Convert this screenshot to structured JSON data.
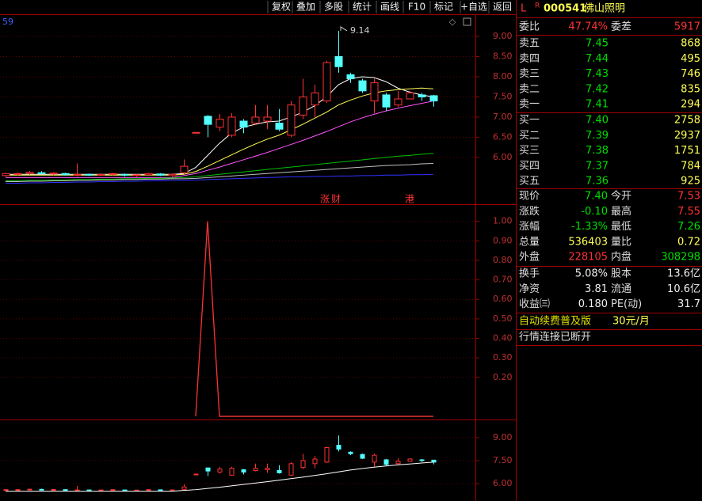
{
  "toolbar": [
    "复权",
    "叠加",
    "多股",
    "统计",
    "画线",
    "F10",
    "标记",
    "+自选",
    "返回"
  ],
  "chart": {
    "indicator_value": "59",
    "high_label": "9.14",
    "event_labels": [
      "涨",
      "财",
      "港"
    ],
    "price_lim": [
      4.84,
      9.55
    ],
    "price_ticks": [
      {
        "value": 9,
        "label": "9.00"
      },
      {
        "value": 8.5,
        "label": "8.50"
      },
      {
        "value": 8,
        "label": "8.00"
      },
      {
        "value": 7.5,
        "label": "7.50"
      },
      {
        "value": 7,
        "label": "7.00"
      },
      {
        "value": 6.5,
        "label": "6.50"
      },
      {
        "value": 6,
        "label": "6.00"
      }
    ],
    "candles": [
      [
        5.55,
        5.62,
        5.52,
        5.6
      ],
      [
        5.58,
        5.62,
        5.55,
        5.6
      ],
      [
        5.6,
        5.66,
        5.57,
        5.63
      ],
      [
        5.62,
        5.66,
        5.58,
        5.6
      ],
      [
        5.6,
        5.63,
        5.56,
        5.61
      ],
      [
        5.6,
        5.62,
        5.55,
        5.57
      ],
      [
        5.57,
        5.85,
        5.53,
        5.58
      ],
      [
        5.58,
        5.6,
        5.54,
        5.56
      ],
      [
        5.56,
        5.6,
        5.54,
        5.58
      ],
      [
        5.58,
        5.62,
        5.55,
        5.6
      ],
      [
        5.58,
        5.6,
        5.53,
        5.56
      ],
      [
        5.56,
        5.59,
        5.52,
        5.57
      ],
      [
        5.57,
        5.62,
        5.54,
        5.6
      ],
      [
        5.59,
        5.61,
        5.54,
        5.56
      ],
      [
        5.55,
        5.6,
        5.52,
        5.58
      ],
      [
        5.62,
        5.95,
        5.58,
        5.78
      ],
      [
        6.62,
        6.62,
        6.62,
        6.62
      ],
      [
        7.02,
        7.05,
        6.5,
        6.82
      ],
      [
        6.75,
        7.08,
        6.65,
        6.95
      ],
      [
        6.55,
        7.1,
        6.5,
        7.0
      ],
      [
        6.9,
        6.95,
        6.6,
        6.75
      ],
      [
        6.85,
        7.3,
        6.8,
        7.0
      ],
      [
        6.9,
        7.3,
        6.7,
        7.0
      ],
      [
        6.85,
        7.2,
        6.65,
        6.7
      ],
      [
        6.55,
        7.4,
        6.5,
        7.3
      ],
      [
        7.05,
        7.95,
        6.95,
        7.5
      ],
      [
        7.3,
        7.8,
        7.0,
        7.6
      ],
      [
        7.4,
        8.4,
        7.35,
        8.35
      ],
      [
        8.5,
        9.14,
        8.1,
        8.25
      ],
      [
        8.05,
        8.1,
        7.85,
        7.95
      ],
      [
        7.9,
        7.95,
        7.6,
        7.65
      ],
      [
        7.4,
        7.95,
        7.1,
        7.85
      ],
      [
        7.55,
        7.6,
        7.15,
        7.25
      ],
      [
        7.3,
        7.65,
        7.25,
        7.45
      ],
      [
        7.45,
        7.65,
        7.45,
        7.6
      ],
      [
        7.55,
        7.6,
        7.4,
        7.5
      ],
      [
        7.53,
        7.55,
        7.26,
        7.4
      ]
    ],
    "ma": [
      {
        "color": "#ffffff",
        "values": [
          5.58,
          5.58,
          5.58,
          5.58,
          5.58,
          5.58,
          5.58,
          5.58,
          5.58,
          5.58,
          5.58,
          5.58,
          5.58,
          5.58,
          5.58,
          5.6,
          5.75,
          6.05,
          6.35,
          6.6,
          6.75,
          6.82,
          6.88,
          6.9,
          7.0,
          7.12,
          7.28,
          7.5,
          7.8,
          7.95,
          8.0,
          7.98,
          7.88,
          7.72,
          7.62,
          7.55,
          7.5
        ]
      },
      {
        "color": "#ffff54",
        "values": [
          5.56,
          5.56,
          5.56,
          5.56,
          5.56,
          5.56,
          5.56,
          5.56,
          5.56,
          5.56,
          5.56,
          5.56,
          5.56,
          5.56,
          5.56,
          5.58,
          5.65,
          5.78,
          5.92,
          6.06,
          6.2,
          6.33,
          6.45,
          6.55,
          6.68,
          6.82,
          6.97,
          7.12,
          7.3,
          7.42,
          7.52,
          7.6,
          7.65,
          7.68,
          7.7,
          7.72,
          7.7
        ]
      },
      {
        "color": "#ff54ff",
        "values": [
          5.5,
          5.5,
          5.5,
          5.5,
          5.5,
          5.5,
          5.5,
          5.5,
          5.5,
          5.5,
          5.5,
          5.5,
          5.5,
          5.5,
          5.5,
          5.55,
          5.6,
          5.68,
          5.76,
          5.85,
          5.94,
          6.03,
          6.12,
          6.22,
          6.32,
          6.42,
          6.53,
          6.64,
          6.76,
          6.88,
          6.98,
          7.07,
          7.15,
          7.22,
          7.28,
          7.34,
          7.4
        ]
      },
      {
        "color": "#00c000",
        "values": [
          5.42,
          5.42,
          5.43,
          5.43,
          5.44,
          5.44,
          5.45,
          5.45,
          5.46,
          5.46,
          5.47,
          5.47,
          5.48,
          5.48,
          5.49,
          5.5,
          5.52,
          5.55,
          5.58,
          5.61,
          5.64,
          5.67,
          5.7,
          5.73,
          5.76,
          5.79,
          5.82,
          5.85,
          5.88,
          5.91,
          5.94,
          5.97,
          6.0,
          6.03,
          6.05,
          6.08,
          6.1
        ]
      },
      {
        "color": "#c0c0c0",
        "values": [
          5.4,
          5.4,
          5.41,
          5.41,
          5.42,
          5.42,
          5.43,
          5.43,
          5.44,
          5.44,
          5.45,
          5.45,
          5.46,
          5.46,
          5.47,
          5.47,
          5.48,
          5.5,
          5.52,
          5.54,
          5.56,
          5.58,
          5.6,
          5.62,
          5.64,
          5.66,
          5.68,
          5.7,
          5.72,
          5.74,
          5.76,
          5.78,
          5.8,
          5.81,
          5.82,
          5.84,
          5.85
        ]
      },
      {
        "color": "#3030ff",
        "values": [
          5.36,
          5.36,
          5.37,
          5.37,
          5.38,
          5.38,
          5.39,
          5.39,
          5.4,
          5.4,
          5.41,
          5.41,
          5.42,
          5.42,
          5.43,
          5.43,
          5.44,
          5.45,
          5.46,
          5.47,
          5.48,
          5.49,
          5.5,
          5.51,
          5.52,
          5.52,
          5.53,
          5.53,
          5.54,
          5.54,
          5.55,
          5.55,
          5.56,
          5.56,
          5.57,
          5.57,
          5.58
        ]
      }
    ],
    "signal_lim": [
      -0.016,
      1.08
    ],
    "signal_ticks": [
      {
        "value": 1,
        "label": "1.00"
      },
      {
        "value": 0.9,
        "label": "0.90"
      },
      {
        "value": 0.8,
        "label": "0.80"
      },
      {
        "value": 0.7,
        "label": "0.70"
      },
      {
        "value": 0.6,
        "label": "0.60"
      },
      {
        "value": 0.5,
        "label": "0.50"
      },
      {
        "value": 0.4,
        "label": "0.40"
      },
      {
        "value": 0.3,
        "label": "0.30"
      },
      {
        "value": 0.2,
        "label": "0.20"
      }
    ],
    "signal": [
      null,
      null,
      null,
      null,
      null,
      null,
      null,
      null,
      null,
      null,
      null,
      null,
      null,
      null,
      null,
      null,
      0,
      1,
      0,
      0,
      0,
      0,
      0,
      0,
      0,
      0,
      0,
      0,
      0,
      0,
      0,
      0,
      0,
      0,
      0,
      0,
      0
    ],
    "lower_lim": [
      4.86,
      10.03
    ],
    "lower_ticks": [
      {
        "value": 9,
        "label": "9.00"
      },
      {
        "value": 7.5,
        "label": "7.50"
      },
      {
        "value": 6,
        "label": "6.00"
      }
    ]
  },
  "quote": {
    "header": {
      "l": "L",
      "r": "R",
      "code": "000541",
      "name": "佛山照明"
    },
    "ratio": [
      "委比",
      "47.74%",
      "委差",
      "5917"
    ],
    "asks": [
      [
        "卖五",
        "7.45",
        "868"
      ],
      [
        "卖四",
        "7.44",
        "495"
      ],
      [
        "卖三",
        "7.43",
        "746"
      ],
      [
        "卖二",
        "7.42",
        "835"
      ],
      [
        "卖一",
        "7.41",
        "294"
      ]
    ],
    "bids": [
      [
        "买一",
        "7.40",
        "2758"
      ],
      [
        "买二",
        "7.39",
        "2937"
      ],
      [
        "买三",
        "7.38",
        "1751"
      ],
      [
        "买四",
        "7.37",
        "784"
      ],
      [
        "买五",
        "7.36",
        "925"
      ]
    ],
    "stats": [
      [
        "现价",
        "7.40",
        "今开",
        "7.53"
      ],
      [
        "涨跌",
        "-0.10",
        "最高",
        "7.55"
      ],
      [
        "涨幅",
        "-1.33%",
        "最低",
        "7.26"
      ],
      [
        "总量",
        "536403",
        "量比",
        "0.72"
      ],
      [
        "外盘",
        "228105",
        "内盘",
        "308298"
      ]
    ],
    "fundamentals": [
      [
        "换手",
        "5.08%",
        "股本",
        "13.6亿"
      ],
      [
        "净资",
        "3.81",
        "流通",
        "10.6亿"
      ],
      [
        "收益㈢",
        "0.180",
        "PE(动)",
        "31.7"
      ]
    ],
    "promo": [
      "自动续费普及版",
      "30元/月"
    ],
    "status": "行情连接已断开"
  }
}
